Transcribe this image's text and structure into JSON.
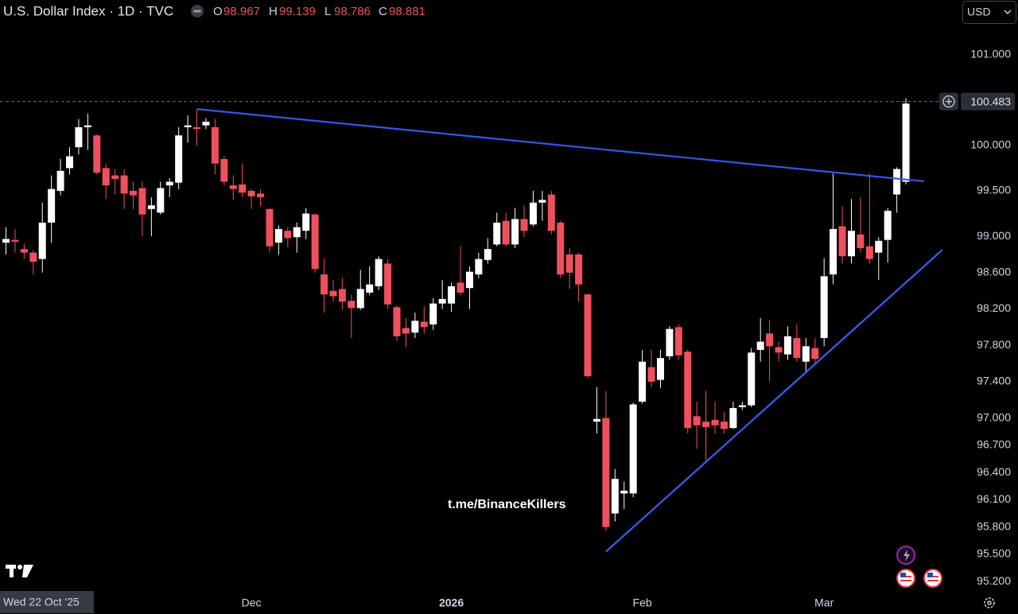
{
  "title": "U.S. Dollar Index · 1D · TVC",
  "ohlc_header": [
    {
      "label": "O",
      "value": 98.967
    },
    {
      "label": "H",
      "value": 99.139
    },
    {
      "label": "L",
      "value": 98.786
    },
    {
      "label": "C",
      "value": 98.881
    }
  ],
  "currency": "USD",
  "crosshair_date": "Wed 22 Oct '25",
  "watermark": "t.me/BinanceKillers",
  "chart_data": {
    "type": "candlestick",
    "categories": [
      null,
      null,
      null,
      null,
      null,
      null,
      null,
      null,
      null,
      null,
      null,
      null,
      null,
      null,
      null,
      null,
      null,
      null,
      null,
      null,
      null,
      null,
      null,
      null,
      null,
      null,
      null,
      "Dec",
      null,
      null,
      null,
      null,
      null,
      null,
      null,
      null,
      null,
      null,
      null,
      null,
      null,
      null,
      null,
      null,
      null,
      null,
      null,
      null,
      null,
      "2026",
      null,
      null,
      null,
      null,
      null,
      null,
      null,
      null,
      null,
      null,
      null,
      null,
      null,
      null,
      null,
      null,
      null,
      null,
      null,
      null,
      "Feb",
      null,
      null,
      null,
      null,
      null,
      null,
      null,
      null,
      null,
      null,
      null,
      null,
      null,
      null,
      null,
      null,
      null,
      null,
      null,
      "Mar",
      null,
      null,
      null,
      null,
      null,
      null,
      null,
      null,
      null
    ],
    "open": [
      98.93,
      98.96,
      98.86,
      98.82,
      98.75,
      99.15,
      99.5,
      99.75,
      99.98,
      100.2,
      100.11,
      99.75,
      99.67,
      99.67,
      99.5,
      99.53,
      99.3,
      99.26,
      99.56,
      99.59,
      100.2,
      100.2,
      100.22,
      100.2,
      99.85,
      99.56,
      99.57,
      99.5,
      99.47,
      99.3,
      98.93,
      99.06,
      98.99,
      99.06,
      99.24,
      98.58,
      98.4,
      98.42,
      98.29,
      98.21,
      98.38,
      98.45,
      98.7,
      98.22,
      97.99,
      97.94,
      98.06,
      98.03,
      98.26,
      98.26,
      98.49,
      98.43,
      98.58,
      98.74,
      98.91,
      99.17,
      98.91,
      99.19,
      99.13,
      99.37,
      99.46,
      99.15,
      98.8,
      98.8,
      98.36,
      96.96,
      97.0,
      95.95,
      96.17,
      96.17,
      97.18,
      97.56,
      97.42,
      97.68,
      98.0,
      97.73,
      97.02,
      96.96,
      96.98,
      96.96,
      96.89,
      97.12,
      97.14,
      97.75,
      97.93,
      97.78,
      97.7,
      97.88,
      97.62,
      97.77,
      97.88,
      98.58,
      99.11,
      98.78,
      99.02,
      98.89,
      98.82,
      98.96,
      99.46,
      99.6
    ],
    "high": [
      99.1,
      99.08,
      98.92,
      98.85,
      99.37,
      99.67,
      99.85,
      99.98,
      100.29,
      100.35,
      100.12,
      99.8,
      99.74,
      99.74,
      99.6,
      99.6,
      99.43,
      99.6,
      99.64,
      100.2,
      100.33,
      100.4,
      100.3,
      100.29,
      99.88,
      99.67,
      99.8,
      99.52,
      99.52,
      99.31,
      99.12,
      99.1,
      99.15,
      99.31,
      99.25,
      98.76,
      98.52,
      98.54,
      98.36,
      98.63,
      98.67,
      98.78,
      98.75,
      98.24,
      98.1,
      98.16,
      98.23,
      98.32,
      98.52,
      98.49,
      98.89,
      98.67,
      98.82,
      98.98,
      99.26,
      99.26,
      99.31,
      99.34,
      99.5,
      99.5,
      99.5,
      99.17,
      98.87,
      98.82,
      98.37,
      97.34,
      97.3,
      96.44,
      96.3,
      97.17,
      97.75,
      97.75,
      97.75,
      98.01,
      98.03,
      97.75,
      97.18,
      97.3,
      97.18,
      97.07,
      97.18,
      97.18,
      97.77,
      98.1,
      98.08,
      97.84,
      98.01,
      98.03,
      97.88,
      97.88,
      98.76,
      99.69,
      99.33,
      99.41,
      99.43,
      99.69,
      98.99,
      99.31,
      99.76,
      100.52
    ],
    "low": [
      98.8,
      98.82,
      98.75,
      98.58,
      98.6,
      98.93,
      99.45,
      99.68,
      99.9,
      99.95,
      99.68,
      99.41,
      99.46,
      99.3,
      99.3,
      99.0,
      99.0,
      99.24,
      99.43,
      99.52,
      100.03,
      100.0,
      100.18,
      99.68,
      99.56,
      99.4,
      99.43,
      99.3,
      99.33,
      98.82,
      98.8,
      98.88,
      98.82,
      98.97,
      98.6,
      98.16,
      98.28,
      98.19,
      97.88,
      98.19,
      98.35,
      98.41,
      98.2,
      97.85,
      97.78,
      97.88,
      97.93,
      97.97,
      98.2,
      98.17,
      98.35,
      98.2,
      98.54,
      98.7,
      98.89,
      98.89,
      98.87,
      98.99,
      99.11,
      99.17,
      99.02,
      98.54,
      98.42,
      98.28,
      97.44,
      96.83,
      95.76,
      95.86,
      96.0,
      96.13,
      97.16,
      97.34,
      97.33,
      97.64,
      97.64,
      96.83,
      96.66,
      96.53,
      96.83,
      96.83,
      96.88,
      97.09,
      97.12,
      97.62,
      97.4,
      97.62,
      97.64,
      97.62,
      97.51,
      97.6,
      97.79,
      98.47,
      98.7,
      98.7,
      98.82,
      98.7,
      98.52,
      98.71,
      99.26,
      99.57
    ],
    "close": [
      98.97,
      98.94,
      98.82,
      98.72,
      99.15,
      99.52,
      99.72,
      99.88,
      100.2,
      100.22,
      99.7,
      99.56,
      99.63,
      99.47,
      99.45,
      99.24,
      99.34,
      99.53,
      99.6,
      100.11,
      100.22,
      100.18,
      100.26,
      99.8,
      99.6,
      99.52,
      99.48,
      99.44,
      99.43,
      98.89,
      99.08,
      98.98,
      99.1,
      99.25,
      98.64,
      98.36,
      98.34,
      98.28,
      98.21,
      98.42,
      98.47,
      98.75,
      98.25,
      97.9,
      97.93,
      98.07,
      98.0,
      98.26,
      98.31,
      98.45,
      98.38,
      98.61,
      98.75,
      98.86,
      99.15,
      98.91,
      99.19,
      99.06,
      99.37,
      99.4,
      99.06,
      98.58,
      98.6,
      98.47,
      97.46,
      96.99,
      95.8,
      96.33,
      96.2,
      97.15,
      97.62,
      97.4,
      97.66,
      97.98,
      97.69,
      96.89,
      96.92,
      96.9,
      96.92,
      96.88,
      97.11,
      97.14,
      97.72,
      97.84,
      97.79,
      97.72,
      97.9,
      97.66,
      97.79,
      97.65,
      98.56,
      99.08,
      98.78,
      99.06,
      98.87,
      98.75,
      98.95,
      99.28,
      99.74,
      100.46
    ],
    "up_color": "#ffffff",
    "down_color": "#f0505c",
    "ylim": [
      95.08,
      101.6
    ],
    "yticks": [
      {
        "value": 101,
        "label": "101.000"
      },
      {
        "value": 100,
        "label": "100.000"
      },
      {
        "value": 99.5,
        "label": "99.500"
      },
      {
        "value": 99,
        "label": "99.000"
      },
      {
        "value": 98.6,
        "label": "98.600"
      },
      {
        "value": 98.2,
        "label": "98.200"
      },
      {
        "value": 97.8,
        "label": "97.800"
      },
      {
        "value": 97.4,
        "label": "97.400"
      },
      {
        "value": 97,
        "label": "97.000"
      },
      {
        "value": 96.7,
        "label": "96.700"
      },
      {
        "value": 96.4,
        "label": "96.400"
      },
      {
        "value": 96.1,
        "label": "96.100"
      },
      {
        "value": 95.8,
        "label": "95.800"
      },
      {
        "value": 95.5,
        "label": "95.500"
      },
      {
        "value": 95.2,
        "label": "95.200"
      }
    ],
    "grid": false,
    "last_price": 100.483,
    "trendlines": [
      {
        "color": "#3057f2",
        "points": [
          [
            21,
            100.4
          ],
          [
            101.0,
            99.605
          ]
        ]
      },
      {
        "color": "#3560f5",
        "points": [
          [
            66,
            95.53
          ],
          [
            103.0,
            98.85
          ]
        ]
      }
    ]
  }
}
